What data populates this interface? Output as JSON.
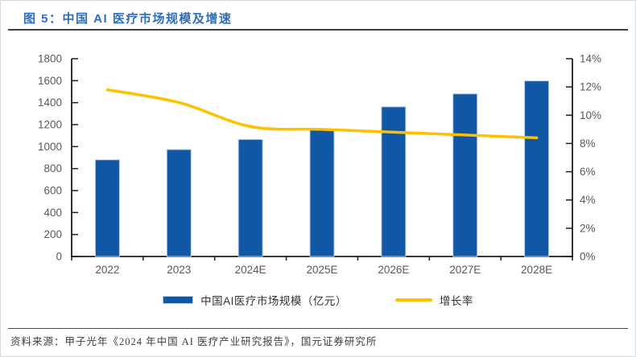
{
  "page": {
    "title": "图 5：中国 AI 医疗市场规模及增速",
    "source_label": "资料来源：",
    "source_text": "甲子光年《2024 年中国 AI 医疗产业研究报告》，国元证券研究所"
  },
  "colors": {
    "title_blue": "#2f6eb6",
    "bar_fill": "#1057a6",
    "bar_border": "#b9cde6",
    "line_yellow": "#ffc000",
    "axis": "#1c1c1c",
    "tick_label": "#595959"
  },
  "chart_data": {
    "type": "bar",
    "subtype": "bar-line-combo",
    "title": "中国 AI 医疗市场规模及增速",
    "categories": [
      "2022",
      "2023",
      "2024E",
      "2025E",
      "2026E",
      "2027E",
      "2028E"
    ],
    "series": [
      {
        "name": "中国AI医疗市场规模（亿元）",
        "type": "bar",
        "axis": "left",
        "values": [
          880,
          973,
          1065,
          1157,
          1362,
          1480,
          1598
        ]
      },
      {
        "name": "增长率",
        "type": "line",
        "axis": "right",
        "values_percent": [
          11.8,
          10.9,
          9.2,
          9.0,
          8.8,
          8.6,
          8.4
        ]
      }
    ],
    "left_axis": {
      "min": 0,
      "max": 1800,
      "step": 200,
      "tick_labels": [
        "1800",
        "1600",
        "1400",
        "1200",
        "1000",
        "800",
        "600",
        "400",
        "200",
        "0"
      ]
    },
    "right_axis": {
      "min": 0,
      "max": 14,
      "step": 2,
      "format": "percent",
      "tick_labels": [
        "14%",
        "12%",
        "10%",
        "8%",
        "6%",
        "4%",
        "2%",
        "0%"
      ]
    },
    "grid": false,
    "legend_position": "bottom"
  }
}
